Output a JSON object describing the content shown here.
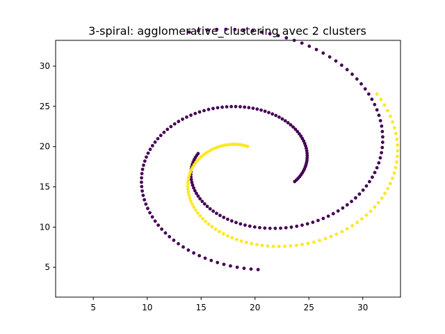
{
  "chart_data": {
    "type": "scatter",
    "title": "3-spiral: agglomerative_clustering avec 2 clusters",
    "xlabel": "",
    "ylabel": "",
    "xlim": [
      1.5,
      33.5
    ],
    "ylim": [
      1.3,
      33.2
    ],
    "xticks": [
      "5",
      "10",
      "15",
      "20",
      "25",
      "30"
    ],
    "yticks": [
      "5",
      "10",
      "15",
      "20",
      "25",
      "30"
    ],
    "grid": false,
    "legend": "none",
    "colors": {
      "cluster_0": "#440154",
      "cluster_1": "#fde725"
    },
    "spirals": [
      {
        "cluster": 0,
        "cx": 19.5,
        "cy": 18.7,
        "r_start": 4.8,
        "r_end": 16.5,
        "theta_start": 3.05,
        "theta_end": 8.2,
        "count": 100
      },
      {
        "cluster": 0,
        "cx": 19.6,
        "cy": 17.3,
        "r_start": 4.4,
        "r_end": 12.6,
        "theta_start": 5.9,
        "theta_end": 11.05,
        "count": 100
      },
      {
        "cluster": 1,
        "cx": 20.0,
        "cy": 17.3,
        "r_start": 2.8,
        "r_end": 14.6,
        "theta_start": 8.1,
        "theta_end": 13.25,
        "count": 100
      }
    ]
  }
}
